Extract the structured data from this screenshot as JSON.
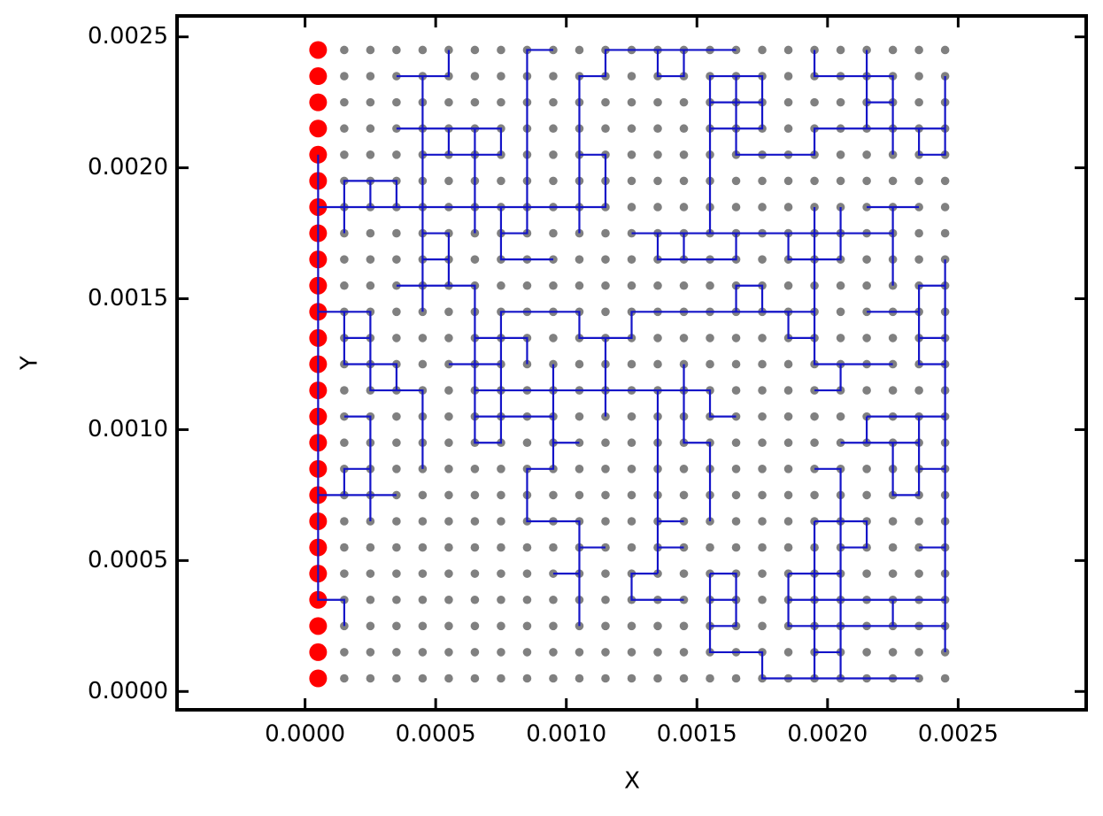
{
  "chart_data": {
    "type": "network",
    "xlabel": "X",
    "ylabel": "Y",
    "xlim": [
      -0.00049,
      0.00299
    ],
    "ylim": [
      -7e-05,
      0.00258
    ],
    "xticks": [
      {
        "value": 0,
        "label": "0.0000"
      },
      {
        "value": 0.0005,
        "label": "0.0005"
      },
      {
        "value": 0.001,
        "label": "0.0010"
      },
      {
        "value": 0.0015,
        "label": "0.0015"
      },
      {
        "value": 0.002,
        "label": "0.0020"
      },
      {
        "value": 0.0025,
        "label": "0.0025"
      }
    ],
    "yticks": [
      {
        "value": 0,
        "label": "0.0000"
      },
      {
        "value": 0.0005,
        "label": "0.0005"
      },
      {
        "value": 0.001,
        "label": "0.0010"
      },
      {
        "value": 0.0015,
        "label": "0.0015"
      },
      {
        "value": 0.002,
        "label": "0.0020"
      },
      {
        "value": 0.0025,
        "label": "0.0025"
      }
    ],
    "anchors": {
      "color": "#ff0000",
      "x": [
        5e-05
      ],
      "y": [
        5e-05,
        0.00015,
        0.00025,
        0.00035,
        0.00045,
        0.00055,
        0.00065,
        0.00075,
        0.00085,
        0.00095,
        0.00105,
        0.00115,
        0.00125,
        0.00135,
        0.00145,
        0.00155,
        0.00165,
        0.00175,
        0.00185,
        0.00195,
        0.00205,
        0.00215,
        0.00225,
        0.00235,
        0.00245
      ]
    },
    "nodes": {
      "color": "#808080",
      "x": [
        0.00015,
        0.00025,
        0.00035,
        0.00045,
        0.00055,
        0.00065,
        0.00075,
        0.00085,
        0.00095,
        0.00105,
        0.00115,
        0.00125,
        0.00135,
        0.00145,
        0.00155,
        0.00165,
        0.00175,
        0.00185,
        0.00195,
        0.00205,
        0.00215,
        0.00225,
        0.00235,
        0.00245
      ],
      "y": [
        5e-05,
        0.00015,
        0.00025,
        0.00035,
        0.00045,
        0.00055,
        0.00065,
        0.00075,
        0.00085,
        0.00095,
        0.00105,
        0.00115,
        0.00125,
        0.00135,
        0.00145,
        0.00155,
        0.00165,
        0.00175,
        0.00185,
        0.00195,
        0.00205,
        0.00215,
        0.00225,
        0.00235,
        0.00245
      ]
    },
    "line": {
      "color": "#1414c8",
      "x": [
        5e-05,
        5e-05,
        0.00015,
        0.00015,
        null,
        5e-05,
        0.00115,
        0.00115,
        0.00105,
        null,
        0.00105,
        0.00105,
        0.00115,
        0.00115,
        0.00165,
        null,
        0.00135,
        0.00135,
        0.00145,
        0.00145,
        null,
        0.00085,
        0.00085,
        0.00095,
        null,
        0.00015,
        0.00015,
        0.00035,
        0.00035,
        null,
        0.00025,
        0.00025,
        null,
        0.00035,
        0.00055,
        0.00055,
        null,
        0.00045,
        0.00045,
        null,
        0.00035,
        0.00075,
        0.00075,
        0.00045,
        null,
        0.00055,
        0.00055,
        null,
        0.00065,
        0.00065,
        null,
        0.00035,
        0.00065,
        0.00065,
        0.00075,
        0.00075,
        0.00105,
        0.00105,
        0.00125,
        0.00125,
        0.00195,
        null,
        0.00045,
        0.00055,
        0.00055,
        null,
        0.00045,
        0.00055,
        null,
        0.00075,
        0.00075,
        0.00095,
        null,
        0.00075,
        0.00085,
        0.00085,
        null,
        5e-05,
        0.00025,
        0.00025,
        0.00045,
        0.00045,
        null,
        0.00015,
        0.00015,
        0.00035,
        0.00035,
        null,
        0.00015,
        0.00025,
        null,
        0.00015,
        0.00025,
        0.00025,
        null,
        5e-05,
        0.00035,
        null,
        0.00015,
        0.00015,
        0.00025,
        null,
        0.00055,
        0.00075,
        null,
        0.00065,
        0.00085,
        0.00085,
        null,
        0.00065,
        0.00155,
        0.00155,
        0.00165,
        null,
        0.00065,
        0.00095,
        0.00095,
        0.00105,
        null,
        0.00095,
        0.00095,
        0.00085,
        0.00085,
        0.00105,
        0.00105,
        null,
        0.00105,
        0.00115,
        null,
        0.00095,
        0.00105,
        null,
        0.00115,
        0.00115,
        null,
        0.00135,
        0.00135,
        null,
        0.00135,
        0.00125,
        0.00125,
        0.00145,
        null,
        0.00135,
        0.00145,
        null,
        0.00135,
        0.00145,
        null,
        0.00145,
        0.00145,
        0.00155,
        0.00155,
        null,
        0.00155,
        0.00155,
        0.00175,
        0.00175,
        0.00235,
        null,
        0.00155,
        0.00165,
        0.00165,
        0.00155,
        null,
        0.00155,
        0.00165,
        null,
        0.00125,
        0.00225,
        null,
        0.00135,
        0.00135,
        0.00165,
        0.00165,
        null,
        0.00145,
        0.00145,
        null,
        0.00155,
        0.00155,
        0.00175,
        0.00175,
        0.00155,
        null,
        0.00165,
        0.00165,
        0.00195,
        0.00195,
        0.00245,
        null,
        0.00155,
        0.00175,
        null,
        0.00235,
        0.00235,
        0.00245,
        0.00245,
        null,
        0.00195,
        0.00195,
        0.00225,
        0.00225,
        null,
        0.00215,
        0.00215,
        null,
        0.00215,
        0.00225,
        null,
        0.00195,
        0.00195,
        0.00225,
        null,
        0.00195,
        0.00205,
        0.00205,
        null,
        0.00205,
        0.00205,
        0.00185,
        0.00185,
        null,
        0.00225,
        0.00225,
        null,
        0.00215,
        0.00235,
        null,
        0.00175,
        0.00185,
        0.00185,
        0.00195,
        null,
        0.00165,
        0.00165,
        0.00175,
        0.00175,
        null,
        0.00245,
        0.00245,
        null,
        0.00215,
        0.00235,
        0.00235,
        0.00245,
        null,
        0.00235,
        0.00235,
        0.00245,
        null,
        0.00235,
        0.00245,
        null,
        0.00215,
        0.00245,
        null,
        0.00205,
        0.00235,
        null,
        0.00215,
        0.00215,
        null,
        0.00195,
        0.00205,
        0.00205,
        null,
        0.00195,
        0.00215,
        0.00215,
        0.00205,
        null,
        0.00195,
        0.00195,
        null,
        0.00185,
        0.00205,
        0.00205,
        null,
        0.00185,
        0.00185,
        0.00245,
        null,
        0.00185,
        0.00245,
        null,
        0.00225,
        0.00225,
        null,
        0.00195,
        0.00205,
        null,
        0.00225,
        0.00225,
        0.00235,
        0.00235,
        null,
        0.00235,
        0.00245,
        null,
        0.00235,
        0.00245
      ],
      "y": [
        0.00205,
        0.00035,
        0.00035,
        0.00025,
        null,
        0.00185,
        0.00185,
        0.00205,
        0.00205,
        null,
        0.00175,
        0.00235,
        0.00235,
        0.00245,
        0.00245,
        null,
        0.00245,
        0.00235,
        0.00235,
        0.00245,
        null,
        0.00185,
        0.00245,
        0.00245,
        null,
        0.00175,
        0.00195,
        0.00195,
        0.00185,
        null,
        0.00185,
        0.00195,
        null,
        0.00235,
        0.00235,
        0.00245,
        null,
        0.00235,
        0.00145,
        null,
        0.00215,
        0.00215,
        0.00205,
        0.00205,
        null,
        0.00215,
        0.00205,
        null,
        0.00215,
        0.00175,
        null,
        0.00155,
        0.00155,
        0.00095,
        0.00095,
        0.00145,
        0.00145,
        0.00135,
        0.00135,
        0.00145,
        0.00145,
        null,
        0.00175,
        0.00175,
        0.00155,
        null,
        0.00165,
        0.00165,
        null,
        0.00185,
        0.00165,
        0.00165,
        null,
        0.00175,
        0.00175,
        0.00185,
        null,
        0.00145,
        0.00145,
        0.00115,
        0.00115,
        0.00085,
        null,
        0.00145,
        0.00125,
        0.00125,
        0.00115,
        null,
        0.00135,
        0.00135,
        null,
        0.00105,
        0.00105,
        0.00065,
        null,
        0.00075,
        0.00075,
        null,
        0.00075,
        0.00085,
        0.00085,
        null,
        0.00125,
        0.00125,
        null,
        0.00135,
        0.00135,
        0.00125,
        null,
        0.00115,
        0.00115,
        0.00105,
        0.00105,
        null,
        0.00105,
        0.00105,
        0.00095,
        0.00095,
        null,
        0.00125,
        0.00085,
        0.00085,
        0.00065,
        0.00065,
        0.00025,
        null,
        0.00055,
        0.00055,
        null,
        0.00045,
        0.00045,
        null,
        0.00135,
        0.00105,
        null,
        0.00115,
        0.00045,
        null,
        0.00045,
        0.00045,
        0.00035,
        0.00035,
        null,
        0.00065,
        0.00065,
        null,
        0.00055,
        0.00055,
        null,
        0.00125,
        0.00095,
        0.00095,
        0.00065,
        null,
        0.00045,
        0.00015,
        0.00015,
        5e-05,
        5e-05,
        null,
        0.00045,
        0.00045,
        0.00025,
        0.00025,
        null,
        0.00035,
        0.00035,
        null,
        0.00175,
        0.00175,
        null,
        0.00175,
        0.00165,
        0.00165,
        0.00175,
        null,
        0.00175,
        0.00165,
        null,
        0.00175,
        0.00235,
        0.00235,
        0.00215,
        0.00215,
        null,
        0.00235,
        0.00205,
        0.00205,
        0.00215,
        0.00215,
        null,
        0.00225,
        0.00225,
        null,
        0.00215,
        0.00205,
        0.00205,
        0.00235,
        null,
        0.00245,
        0.00235,
        0.00235,
        0.00205,
        null,
        0.00245,
        0.00215,
        null,
        0.00225,
        0.00225,
        null,
        0.00185,
        0.00125,
        0.00125,
        null,
        0.00115,
        0.00115,
        0.00125,
        null,
        0.00185,
        0.00165,
        0.00165,
        0.00175,
        null,
        0.00185,
        0.00155,
        null,
        0.00185,
        0.00185,
        null,
        0.00145,
        0.00145,
        0.00135,
        0.00135,
        null,
        0.00145,
        0.00155,
        0.00155,
        0.00145,
        null,
        0.00165,
        0.00015,
        null,
        0.00145,
        0.00145,
        0.00155,
        0.00155,
        null,
        0.00145,
        0.00125,
        0.00125,
        null,
        0.00135,
        0.00135,
        null,
        0.00105,
        0.00105,
        null,
        0.00095,
        0.00095,
        null,
        0.00105,
        0.00095,
        null,
        0.00085,
        0.00085,
        0.00045,
        null,
        0.00065,
        0.00065,
        0.00055,
        0.00055,
        null,
        0.00065,
        5e-05,
        null,
        0.00045,
        0.00045,
        5e-05,
        null,
        0.00045,
        0.00025,
        0.00025,
        null,
        0.00035,
        0.00035,
        null,
        0.00035,
        0.00025,
        null,
        0.00015,
        0.00015,
        null,
        0.00095,
        0.00075,
        0.00075,
        0.00105,
        null,
        0.00085,
        0.00085,
        null,
        0.00055,
        0.00055
      ]
    }
  }
}
